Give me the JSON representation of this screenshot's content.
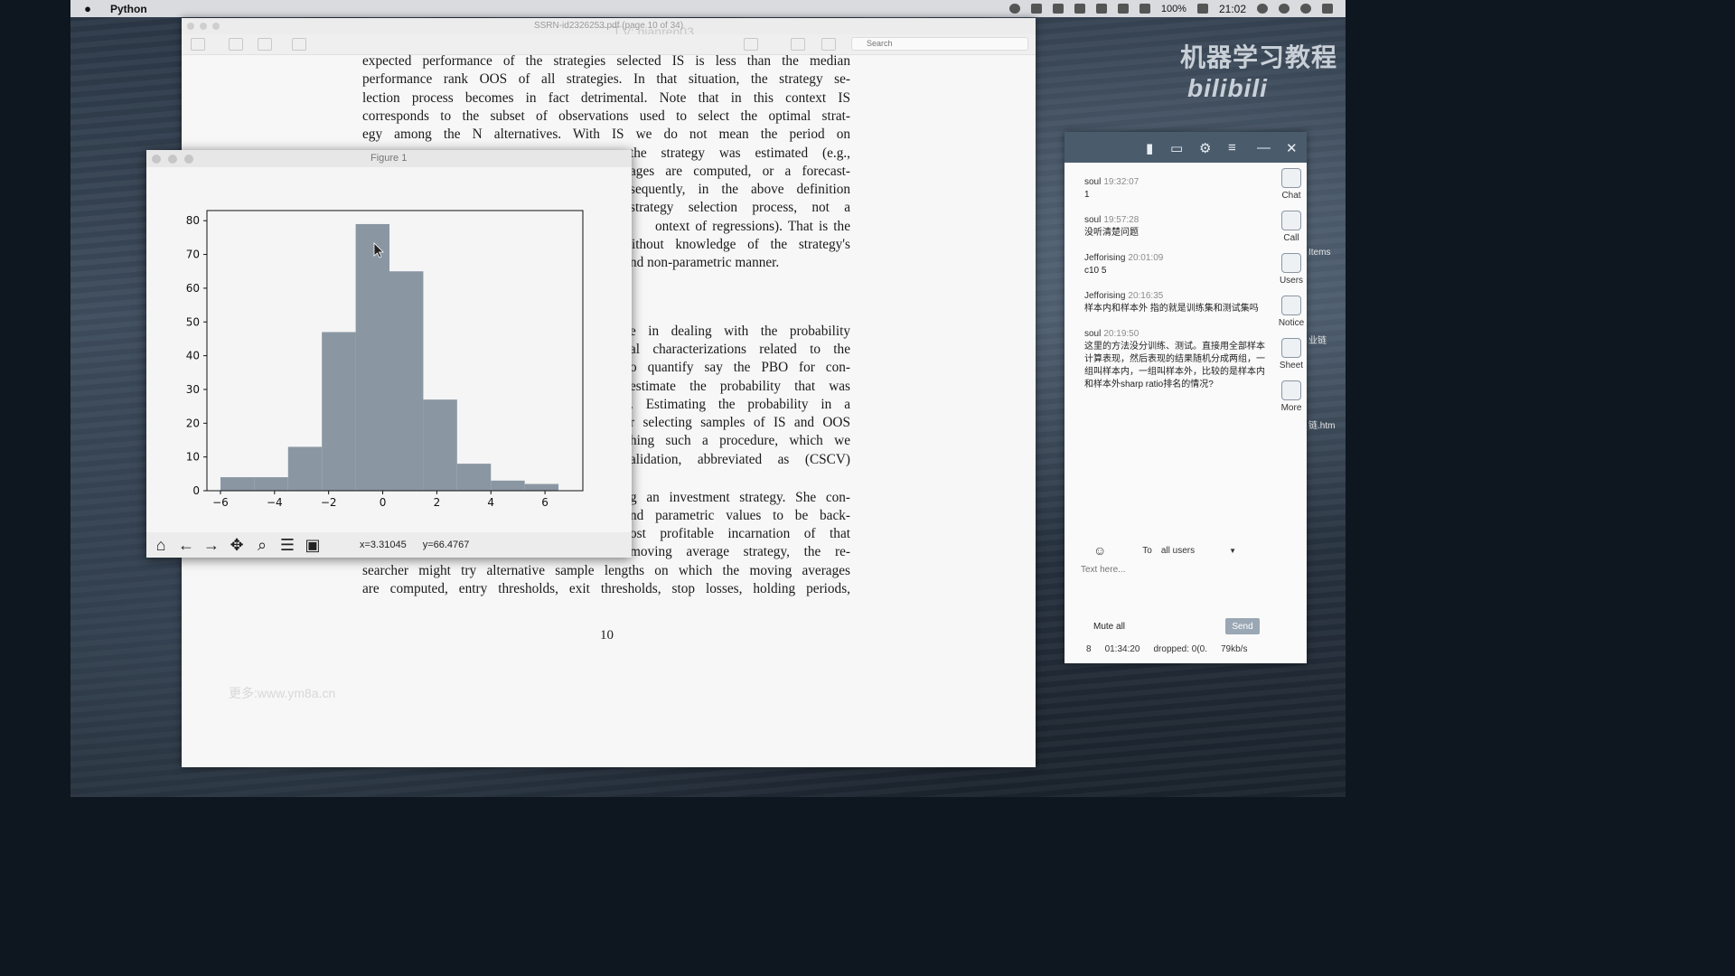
{
  "menubar": {
    "apple": "",
    "app_name": "Python",
    "battery": "100%",
    "clock": "21:02"
  },
  "pdf": {
    "title": "SSRN-id2326253.pdf (page 10 of 34)",
    "search_placeholder": "Search",
    "lines": [
      "expected performance of the strategies selected IS is less than the median",
      "performance rank OOS of all strategies. In that situation, the strategy se-",
      "lection process becomes in fact detrimental. Note that in this context IS",
      "corresponds to the subset of observations used to select the optimal strat-",
      "egy among the N alternatives. With IS we do not mean the period on",
      "the strategy was estimated (e.g.,",
      "ages are computed, or a forecast-",
      "sequently, in the above definition",
      "strategy selection process, not a",
      "ontext of regressions). That is the",
      "ithout knowledge of the strategy's",
      "nd non-parametric manner.",
      "e in dealing with the probability",
      "al characterizations related to the",
      "o quantify say the PBO for con-",
      "estimate the probability that was",
      ". Estimating the probability in a",
      "r selecting samples of IS and OOS",
      "hing such a procedure, which we",
      "alidation, abbreviated as (CSCV)",
      "g an investment strategy. She con-",
      "nd parametric values to be back-",
      "ost profitable incarnation of that",
      "moving average strategy, the re-",
      "searcher might try alternative sample lengths on which the moving averages",
      "are computed, entry thresholds, exit thresholds, stop losses, holding periods,"
    ],
    "page_number": "10"
  },
  "watermarks": {
    "site": "更多:www.ym8a.cn",
    "top": "二丁V: qianren03",
    "bili": "机器学习教程",
    "bili_logo": "bilibili"
  },
  "figure": {
    "title": "Figure 1",
    "coords": {
      "x": "x=3.31045",
      "y": "y=66.4767"
    },
    "toolbar": [
      "home-icon",
      "back-icon",
      "forward-icon",
      "pan-icon",
      "zoom-icon",
      "configure-icon",
      "save-icon"
    ]
  },
  "chart_data": {
    "type": "bar",
    "title": "",
    "xlabel": "",
    "ylabel": "",
    "xlim": [
      -6.5,
      7.4
    ],
    "ylim": [
      0,
      83
    ],
    "xticks": [
      -6,
      -4,
      -2,
      0,
      2,
      4,
      6
    ],
    "xtick_labels": [
      "−6",
      "−4",
      "−2",
      "0",
      "2",
      "4",
      "6"
    ],
    "yticks": [
      0,
      10,
      20,
      30,
      40,
      50,
      60,
      70,
      80
    ],
    "bins": [
      -6.0,
      -4.75,
      -3.5,
      -2.25,
      -1.0,
      0.25,
      1.5,
      2.75,
      4.0,
      5.25,
      6.5
    ],
    "counts": [
      4,
      4,
      13,
      47,
      79,
      65,
      27,
      8,
      3,
      2
    ],
    "color": "#8a97a3",
    "grid": false
  },
  "chat": {
    "messages": [
      {
        "user": "soul",
        "time": "19:32:07",
        "text": "1"
      },
      {
        "user": "soul",
        "time": "19:57:28",
        "text": "没听清楚问题"
      },
      {
        "user": "Jefforising",
        "time": "20:01:09",
        "text": "c10 5"
      },
      {
        "user": "Jefforising",
        "time": "20:16:35",
        "text": "样本内和样本外 指的就是训练集和测试集吗"
      },
      {
        "user": "soul",
        "time": "20:19:50",
        "text": "这里的方法没分训练、测试。直接用全部样本计算表现，然后表现的结果随机分成两组，一组叫样本内，一组叫样本外，比较的是样本内和样本外sharp ratio排名的情况?"
      }
    ],
    "side": [
      "Chat",
      "Call",
      "Users",
      "Notice",
      "Sheet",
      "More"
    ],
    "to_label": "To",
    "to_value": "all users",
    "input_placeholder": "Text here...",
    "mute": "Mute all",
    "send": "Send",
    "status": {
      "count": "8",
      "elapsed": "01:34:20",
      "dropped": "dropped: 0(0.",
      "rate": "79kb/s"
    }
  },
  "desktop": {
    "items_label": "Items",
    "chain_label": "业链",
    "htm_label": "链.htm"
  }
}
